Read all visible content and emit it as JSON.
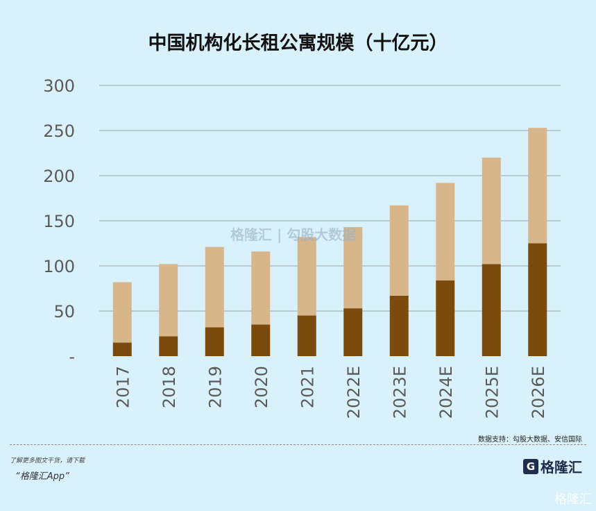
{
  "chart_data": {
    "type": "bar",
    "stacked": true,
    "title": "中国机构化长租公寓规模（十亿元）",
    "categories": [
      "2017",
      "2018",
      "2019",
      "2020",
      "2021",
      "2022E",
      "2023E",
      "2024E",
      "2025E",
      "2026E"
    ],
    "series": [
      {
        "values": [
          15,
          22,
          32,
          35,
          45,
          53,
          67,
          84,
          102,
          125
        ],
        "color": "#7d4a0e"
      },
      {
        "values": [
          67,
          80,
          89,
          81,
          87,
          90,
          100,
          108,
          118,
          128
        ],
        "color": "#d7b68c"
      }
    ],
    "totals": [
      82,
      102,
      121,
      116,
      132,
      143,
      167,
      192,
      220,
      253
    ],
    "ylim": [
      0,
      300
    ],
    "yticks": [
      0,
      50,
      100,
      150,
      200,
      250,
      300
    ],
    "ytick_labels": [
      "-",
      "50",
      "100",
      "150",
      "200",
      "250",
      "300"
    ],
    "grid": true,
    "legend": "none"
  },
  "footer": {
    "source": "数据支持：勾股大数据、安信国际",
    "promo_line1": "了解更多图文干货，请下载",
    "promo_line2": "“格隆汇App”",
    "logo_text": "格隆汇",
    "watermark": "格隆汇",
    "center_watermark": "格隆汇 | 勾股大数据"
  },
  "colors": {
    "background": "#d9f1fb",
    "grid": "#b9ccd4",
    "axis_text": "#5a5a5a"
  }
}
